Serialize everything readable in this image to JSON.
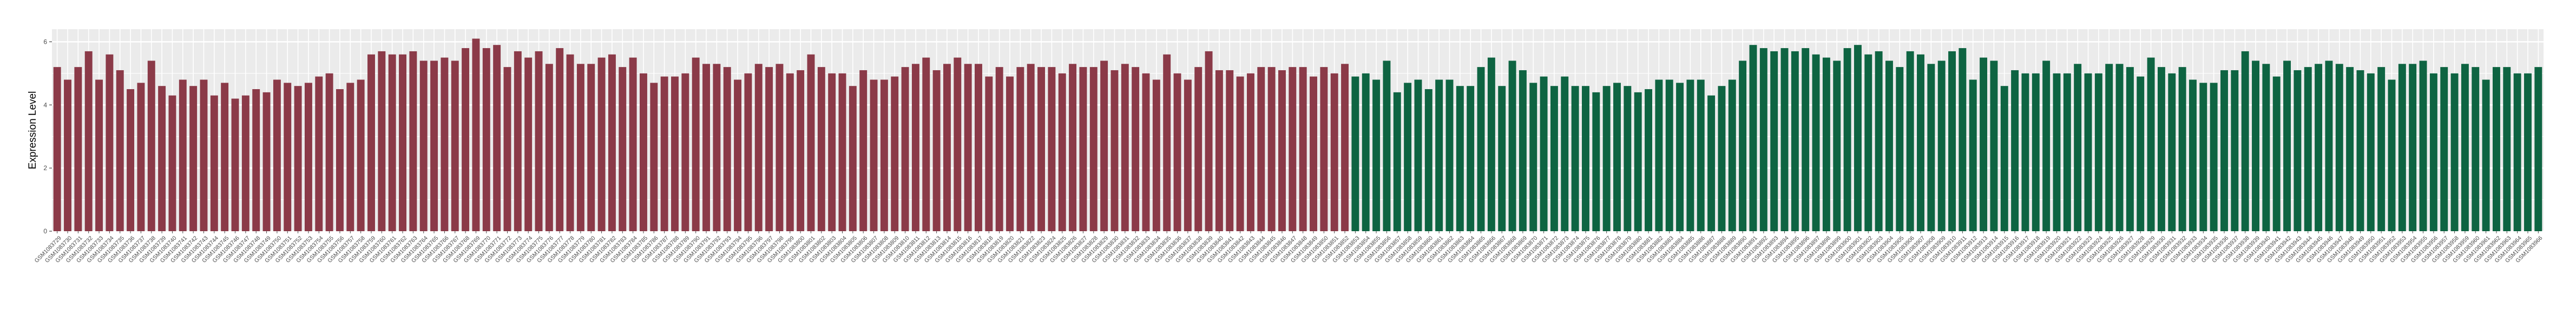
{
  "chart_data": {
    "type": "bar",
    "title": "",
    "xlabel": "",
    "ylabel": "Expression Level",
    "ylim": [
      0,
      6.4
    ],
    "yticks": [
      0,
      2,
      4,
      6
    ],
    "grid": true,
    "legend": "none",
    "colors": {
      "groupA": "#8B3A48",
      "groupB": "#0E6442",
      "panel": "#EBEBEB",
      "grid": "#FFFFFF"
    },
    "groups": [
      {
        "color_key": "groupA",
        "start_label": 1083729,
        "values": [
          5.2,
          4.8,
          5.2,
          5.7,
          4.8,
          5.6,
          5.1,
          4.5,
          4.7,
          5.4,
          4.6,
          4.3,
          4.8,
          4.6,
          4.8,
          4.3,
          4.7,
          4.2,
          4.3,
          4.5,
          4.4,
          4.8,
          4.7,
          4.6,
          4.7,
          4.9,
          5.0,
          4.5,
          4.7,
          4.8,
          5.6,
          5.7,
          5.6,
          5.6,
          5.7,
          5.4,
          5.4,
          5.5,
          5.4,
          5.8,
          6.1,
          5.8,
          5.9,
          5.2,
          5.7,
          5.5,
          5.7,
          5.3,
          5.8,
          5.6,
          5.3,
          5.3,
          5.5,
          5.6,
          5.2,
          5.5,
          5.0,
          4.7,
          4.9,
          4.9,
          5.0,
          5.5,
          5.3,
          5.3,
          5.2,
          4.8,
          5.0,
          5.3,
          5.2,
          5.3,
          5.0,
          5.1,
          5.6,
          5.2,
          5.0,
          5.0,
          4.6,
          5.1,
          4.8,
          4.8,
          4.9,
          5.2,
          5.3,
          5.5,
          5.1,
          5.3,
          5.5,
          5.3,
          5.3,
          4.9,
          5.2,
          4.9,
          5.2,
          5.3,
          5.2,
          5.2,
          5.0,
          5.3,
          5.2,
          5.2,
          5.4,
          5.1,
          5.3,
          5.2,
          5.0,
          4.8,
          5.6,
          5.0,
          4.8,
          5.2,
          5.7,
          5.1,
          5.1,
          4.9,
          5.0,
          5.2,
          5.2,
          5.1,
          5.2,
          5.2,
          4.9,
          5.2,
          5.0,
          5.3
        ]
      },
      {
        "color_key": "groupB",
        "start_label": 1083853,
        "values": [
          4.9,
          5.0,
          4.8,
          5.4,
          4.4,
          4.7,
          4.8,
          4.5,
          4.8,
          4.8,
          4.6,
          4.6,
          5.2,
          5.5,
          4.6,
          5.4,
          5.1,
          4.7,
          4.9,
          4.6,
          4.9,
          4.6,
          4.6,
          4.4,
          4.6,
          4.7,
          4.6,
          4.4,
          4.5,
          4.8,
          4.8,
          4.7,
          4.8,
          4.8,
          4.3,
          4.6,
          4.8,
          5.4,
          5.9,
          5.8,
          5.7,
          5.8,
          5.7,
          5.8,
          5.6,
          5.5,
          5.4,
          5.8,
          5.9,
          5.6,
          5.7,
          5.4,
          5.2,
          5.7,
          5.6,
          5.3,
          5.4,
          5.7,
          5.8,
          4.8,
          5.5,
          5.4,
          4.6,
          5.1,
          5.0,
          5.0,
          5.4,
          5.0,
          5.0,
          5.3,
          5.0,
          5.0,
          5.3,
          5.3,
          5.2,
          4.9,
          5.5,
          5.2,
          5.0,
          5.2,
          4.8,
          4.7,
          4.7,
          5.1,
          5.1,
          5.7,
          5.4,
          5.3,
          4.9,
          5.4,
          5.1,
          5.2,
          5.3,
          5.4,
          5.3,
          5.2,
          5.1,
          5.0,
          5.2,
          4.8,
          5.3,
          5.3,
          5.4,
          5.0,
          5.2,
          5.0,
          5.3,
          5.2,
          4.8,
          5.2,
          5.2,
          5.0,
          5.0,
          5.2
        ]
      }
    ]
  }
}
